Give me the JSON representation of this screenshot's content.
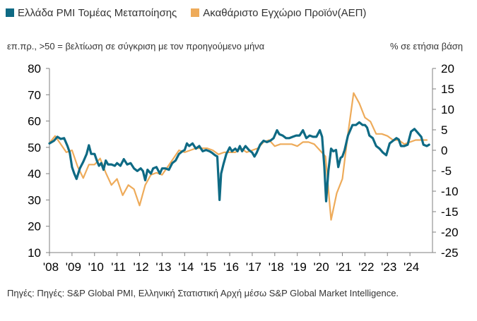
{
  "legend": {
    "pmi_label": "Ελλάδα PMI Τομέας Μεταποίησης",
    "gdp_label": "Ακαθάριστο Εγχώριο Προϊόν(ΑΕΠ)"
  },
  "notes": {
    "left": "επ.πρ., >50 = βελτίωση σε σύγκριση με τον προηγούμενο μήνα",
    "right": "% σε ετήσια βάση"
  },
  "source": "Πηγές: Πηγές: S&P Global PMI, Ελληνική Στατιστική Αρχή μέσω S&P Global Market Intelligence.",
  "colors": {
    "pmi": "#0e6a84",
    "gdp": "#eeab5a"
  },
  "chart_data": {
    "type": "line",
    "x_ticks": [
      "'08",
      "'09",
      "'10",
      "'11",
      "'12",
      "'13",
      "'14",
      "'15",
      "'16",
      "'17",
      "'18",
      "'19",
      "'20",
      "'21",
      "'22",
      "'23",
      "'24"
    ],
    "xlim": [
      2008,
      2025
    ],
    "y_left": {
      "min": 10,
      "max": 80,
      "ticks": [
        10,
        20,
        30,
        40,
        50,
        60,
        70,
        80
      ]
    },
    "y_right": {
      "min": -25,
      "max": 20,
      "ticks": [
        -25,
        -20,
        -15,
        -10,
        -5,
        0,
        5,
        10,
        15,
        20
      ]
    },
    "grid": false,
    "series": [
      {
        "name": "Ελλάδα PMI Τομέας Μεταποίησης",
        "axis": "left",
        "points": [
          [
            2008.0,
            51.5
          ],
          [
            2008.2,
            52.5
          ],
          [
            2008.35,
            54.0
          ],
          [
            2008.5,
            53.2
          ],
          [
            2008.65,
            53.5
          ],
          [
            2008.8,
            50.5
          ],
          [
            2008.9,
            48.0
          ],
          [
            2009.0,
            42.5
          ],
          [
            2009.1,
            40.0
          ],
          [
            2009.2,
            38.0
          ],
          [
            2009.35,
            42.0
          ],
          [
            2009.5,
            44.5
          ],
          [
            2009.65,
            47.5
          ],
          [
            2009.75,
            50.8
          ],
          [
            2009.85,
            47.5
          ],
          [
            2010.0,
            47.5
          ],
          [
            2010.1,
            45.0
          ],
          [
            2010.2,
            43.0
          ],
          [
            2010.3,
            44.0
          ],
          [
            2010.4,
            41.5
          ],
          [
            2010.5,
            45.0
          ],
          [
            2010.6,
            43.5
          ],
          [
            2010.75,
            43.5
          ],
          [
            2010.9,
            43.0
          ],
          [
            2011.0,
            44.0
          ],
          [
            2011.15,
            43.0
          ],
          [
            2011.3,
            45.5
          ],
          [
            2011.45,
            43.5
          ],
          [
            2011.6,
            44.0
          ],
          [
            2011.75,
            42.0
          ],
          [
            2011.9,
            41.0
          ],
          [
            2012.05,
            42.0
          ],
          [
            2012.15,
            41.0
          ],
          [
            2012.25,
            37.5
          ],
          [
            2012.35,
            41.5
          ],
          [
            2012.5,
            40.0
          ],
          [
            2012.6,
            42.0
          ],
          [
            2012.75,
            42.5
          ],
          [
            2012.9,
            40.0
          ],
          [
            2013.0,
            42.0
          ],
          [
            2013.15,
            42.0
          ],
          [
            2013.3,
            41.5
          ],
          [
            2013.45,
            44.0
          ],
          [
            2013.6,
            45.0
          ],
          [
            2013.75,
            47.5
          ],
          [
            2013.9,
            48.5
          ],
          [
            2014.0,
            49.0
          ],
          [
            2014.1,
            51.5
          ],
          [
            2014.2,
            50.5
          ],
          [
            2014.35,
            51.5
          ],
          [
            2014.5,
            49.5
          ],
          [
            2014.65,
            50.5
          ],
          [
            2014.8,
            48.5
          ],
          [
            2014.95,
            49.0
          ],
          [
            2015.1,
            48.5
          ],
          [
            2015.2,
            48.0
          ],
          [
            2015.35,
            47.0
          ],
          [
            2015.45,
            46.5
          ],
          [
            2015.55,
            30.0
          ],
          [
            2015.62,
            40.0
          ],
          [
            2015.72,
            43.5
          ],
          [
            2015.85,
            47.5
          ],
          [
            2016.0,
            50.0
          ],
          [
            2016.1,
            48.5
          ],
          [
            2016.25,
            49.5
          ],
          [
            2016.35,
            48.5
          ],
          [
            2016.45,
            50.5
          ],
          [
            2016.55,
            48.5
          ],
          [
            2016.7,
            50.5
          ],
          [
            2016.85,
            49.0
          ],
          [
            2017.0,
            48.0
          ],
          [
            2017.1,
            46.5
          ],
          [
            2017.2,
            48.0
          ],
          [
            2017.35,
            51.0
          ],
          [
            2017.5,
            52.5
          ],
          [
            2017.65,
            52.0
          ],
          [
            2017.8,
            52.5
          ],
          [
            2017.95,
            53.5
          ],
          [
            2018.1,
            56.5
          ],
          [
            2018.2,
            55.0
          ],
          [
            2018.35,
            54.5
          ],
          [
            2018.5,
            53.5
          ],
          [
            2018.65,
            53.5
          ],
          [
            2018.8,
            54.0
          ],
          [
            2018.95,
            54.5
          ],
          [
            2019.1,
            54.5
          ],
          [
            2019.25,
            56.5
          ],
          [
            2019.4,
            53.5
          ],
          [
            2019.55,
            54.5
          ],
          [
            2019.7,
            54.0
          ],
          [
            2019.85,
            54.0
          ],
          [
            2020.0,
            56.5
          ],
          [
            2020.1,
            54.0
          ],
          [
            2020.2,
            42.5
          ],
          [
            2020.28,
            29.5
          ],
          [
            2020.38,
            41.0
          ],
          [
            2020.5,
            49.5
          ],
          [
            2020.6,
            48.5
          ],
          [
            2020.72,
            49.0
          ],
          [
            2020.82,
            42.5
          ],
          [
            2020.92,
            46.0
          ],
          [
            2021.0,
            46.5
          ],
          [
            2021.1,
            49.0
          ],
          [
            2021.25,
            54.5
          ],
          [
            2021.45,
            58.5
          ],
          [
            2021.6,
            58.5
          ],
          [
            2021.75,
            59.5
          ],
          [
            2021.9,
            58.5
          ],
          [
            2022.0,
            58.5
          ],
          [
            2022.1,
            57.5
          ],
          [
            2022.2,
            54.5
          ],
          [
            2022.35,
            53.5
          ],
          [
            2022.5,
            50.5
          ],
          [
            2022.65,
            49.5
          ],
          [
            2022.8,
            48.0
          ],
          [
            2022.95,
            47.0
          ],
          [
            2023.1,
            51.5
          ],
          [
            2023.25,
            52.5
          ],
          [
            2023.4,
            53.5
          ],
          [
            2023.5,
            53.0
          ],
          [
            2023.6,
            50.5
          ],
          [
            2023.75,
            50.5
          ],
          [
            2023.9,
            51.0
          ],
          [
            2024.05,
            56.0
          ],
          [
            2024.2,
            57.0
          ],
          [
            2024.35,
            55.5
          ],
          [
            2024.5,
            54.0
          ],
          [
            2024.6,
            51.0
          ],
          [
            2024.75,
            50.5
          ],
          [
            2024.85,
            51.0
          ]
        ]
      },
      {
        "name": "Ακαθάριστο Εγχώριο Προϊόν(ΑΕΠ)",
        "axis": "right",
        "points": [
          [
            2008.0,
            1.8
          ],
          [
            2008.25,
            3.5
          ],
          [
            2008.5,
            1.5
          ],
          [
            2008.75,
            -0.5
          ],
          [
            2009.0,
            0.0
          ],
          [
            2009.25,
            -4.0
          ],
          [
            2009.5,
            -6.8
          ],
          [
            2009.75,
            -3.5
          ],
          [
            2010.0,
            -3.5
          ],
          [
            2010.25,
            -2.0
          ],
          [
            2010.5,
            -5.5
          ],
          [
            2010.75,
            -8.5
          ],
          [
            2011.0,
            -7.0
          ],
          [
            2011.25,
            -11.0
          ],
          [
            2011.5,
            -8.5
          ],
          [
            2011.75,
            -9.5
          ],
          [
            2012.0,
            -13.5
          ],
          [
            2012.25,
            -8.5
          ],
          [
            2012.5,
            -6.0
          ],
          [
            2012.75,
            -5.5
          ],
          [
            2013.0,
            -6.0
          ],
          [
            2013.25,
            -4.0
          ],
          [
            2013.5,
            -2.0
          ],
          [
            2013.75,
            0.0
          ],
          [
            2014.0,
            -0.5
          ],
          [
            2014.25,
            0.0
          ],
          [
            2014.5,
            0.5
          ],
          [
            2014.75,
            0.5
          ],
          [
            2015.0,
            0.5
          ],
          [
            2015.25,
            0.0
          ],
          [
            2015.5,
            -1.0
          ],
          [
            2015.75,
            -0.5
          ],
          [
            2016.0,
            -0.5
          ],
          [
            2016.25,
            -0.5
          ],
          [
            2016.5,
            0.5
          ],
          [
            2016.75,
            -0.5
          ],
          [
            2017.0,
            0.0
          ],
          [
            2017.25,
            0.5
          ],
          [
            2017.5,
            2.0
          ],
          [
            2017.75,
            2.5
          ],
          [
            2018.0,
            1.0
          ],
          [
            2018.25,
            1.5
          ],
          [
            2018.5,
            1.5
          ],
          [
            2018.75,
            1.5
          ],
          [
            2019.0,
            1.0
          ],
          [
            2019.25,
            2.0
          ],
          [
            2019.5,
            2.0
          ],
          [
            2019.75,
            1.5
          ],
          [
            2020.0,
            0.0
          ],
          [
            2020.25,
            -1.5
          ],
          [
            2020.5,
            -17.0
          ],
          [
            2020.75,
            -10.5
          ],
          [
            2021.0,
            -7.0
          ],
          [
            2021.25,
            4.0
          ],
          [
            2021.5,
            14.0
          ],
          [
            2021.75,
            11.5
          ],
          [
            2022.0,
            8.0
          ],
          [
            2022.25,
            7.0
          ],
          [
            2022.5,
            4.0
          ],
          [
            2022.75,
            4.0
          ],
          [
            2023.0,
            3.5
          ],
          [
            2023.25,
            2.5
          ],
          [
            2023.5,
            2.5
          ],
          [
            2023.75,
            1.5
          ],
          [
            2024.0,
            2.0
          ],
          [
            2024.25,
            2.5
          ],
          [
            2024.5,
            2.5
          ],
          [
            2024.75,
            2.5
          ]
        ]
      }
    ]
  }
}
